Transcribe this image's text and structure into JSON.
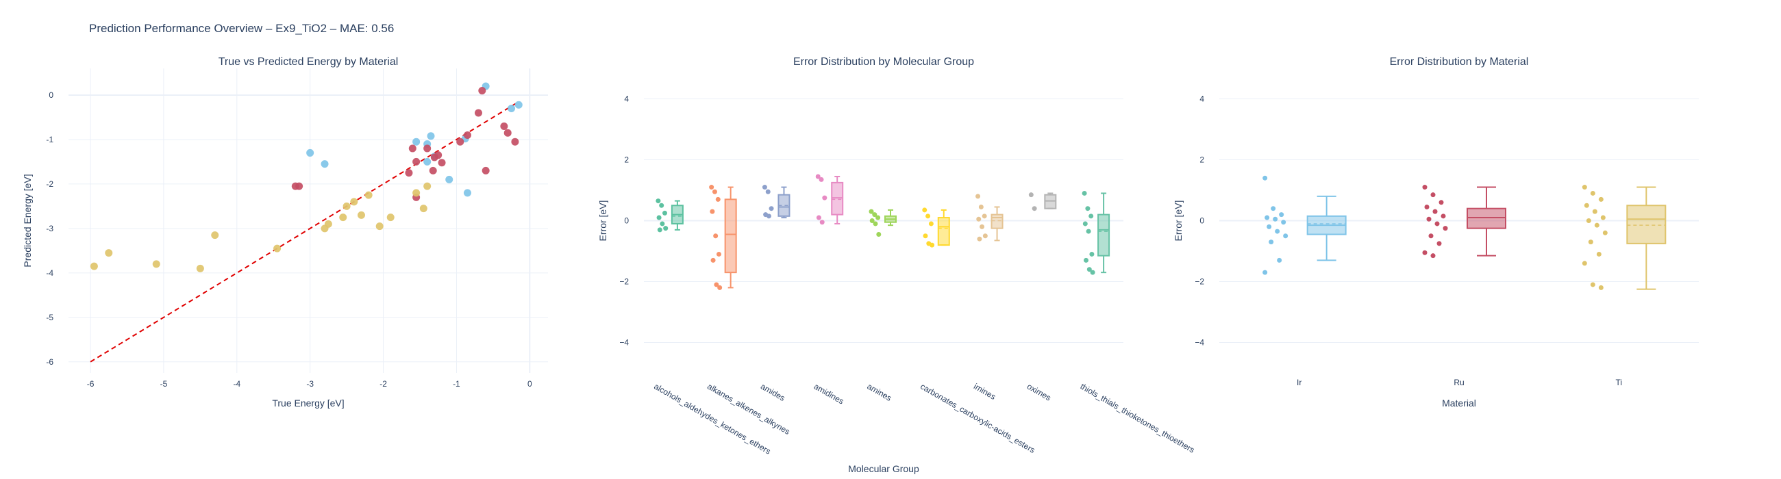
{
  "title": "Prediction Performance Overview – Ex9_TiO2 – MAE: 0.56",
  "colors": {
    "Ir": "#7fc4e8",
    "Ru": "#c44e64",
    "Ti": "#dfc46b",
    "diagonal": "#e00000"
  },
  "chart_data": [
    {
      "type": "scatter",
      "title": "True vs Predicted Energy by Material",
      "xlabel": "True Energy [eV]",
      "ylabel": "Predicted Energy [eV]",
      "xlim": [
        -6.3,
        0.25
      ],
      "ylim": [
        -6.25,
        0.6
      ],
      "xticks": [
        "-6",
        "-5",
        "-4",
        "-3",
        "-2",
        "-1",
        "0"
      ],
      "yticks": [
        "-6",
        "-5",
        "-4",
        "-3",
        "-2",
        "-1",
        "0"
      ],
      "grid": true,
      "diagonal": [
        [
          -6,
          -6
        ],
        [
          -0.15,
          -0.15
        ]
      ],
      "series": [
        {
          "key": "Ir",
          "points": [
            [
              -3.0,
              -1.3
            ],
            [
              -2.8,
              -1.55
            ],
            [
              -1.55,
              -1.05
            ],
            [
              -1.4,
              -1.1
            ],
            [
              -1.35,
              -0.92
            ],
            [
              -1.4,
              -1.5
            ],
            [
              -1.3,
              -1.38
            ],
            [
              -1.1,
              -1.9
            ],
            [
              -0.85,
              -2.2
            ],
            [
              -0.88,
              -0.98
            ],
            [
              -0.6,
              0.2
            ],
            [
              -0.15,
              -0.22
            ],
            [
              -0.25,
              -0.3
            ]
          ]
        },
        {
          "key": "Ru",
          "points": [
            [
              -3.2,
              -2.05
            ],
            [
              -3.15,
              -2.05
            ],
            [
              -1.6,
              -1.2
            ],
            [
              -1.55,
              -1.5
            ],
            [
              -1.65,
              -1.75
            ],
            [
              -1.55,
              -2.3
            ],
            [
              -1.4,
              -1.2
            ],
            [
              -1.32,
              -1.7
            ],
            [
              -1.3,
              -1.4
            ],
            [
              -1.25,
              -1.35
            ],
            [
              -1.2,
              -1.52
            ],
            [
              -0.95,
              -1.05
            ],
            [
              -0.85,
              -0.9
            ],
            [
              -0.7,
              -0.4
            ],
            [
              -0.65,
              0.1
            ],
            [
              -0.6,
              -1.7
            ],
            [
              -0.35,
              -0.7
            ],
            [
              -0.3,
              -0.85
            ],
            [
              -0.2,
              -1.05
            ]
          ]
        },
        {
          "key": "Ti",
          "points": [
            [
              -5.95,
              -3.85
            ],
            [
              -5.75,
              -3.55
            ],
            [
              -5.1,
              -3.8
            ],
            [
              -4.5,
              -3.9
            ],
            [
              -4.3,
              -3.15
            ],
            [
              -3.45,
              -3.45
            ],
            [
              -2.8,
              -3.0
            ],
            [
              -2.75,
              -2.9
            ],
            [
              -2.55,
              -2.75
            ],
            [
              -2.5,
              -2.5
            ],
            [
              -2.4,
              -2.4
            ],
            [
              -2.3,
              -2.7
            ],
            [
              -2.2,
              -2.25
            ],
            [
              -2.05,
              -2.95
            ],
            [
              -1.9,
              -2.75
            ],
            [
              -1.55,
              -2.2
            ],
            [
              -1.45,
              -2.55
            ],
            [
              -1.4,
              -2.05
            ]
          ]
        }
      ]
    },
    {
      "type": "box",
      "title": "Error Distribution by Molecular Group",
      "xlabel": "Molecular Group",
      "ylabel": "Error [eV]",
      "ylim": [
        -5,
        5
      ],
      "yticks": [
        "−4",
        "−2",
        "0",
        "2",
        "4"
      ],
      "groups": [
        {
          "label": "alcohols_aldehydes_ketones_ethers",
          "color": "#5cc1a0",
          "q1": -0.1,
          "median": 0.2,
          "q3": 0.5,
          "mean": 0.15,
          "low": -0.3,
          "high": 0.65,
          "points": [
            0.65,
            0.5,
            0.25,
            0.1,
            -0.1,
            -0.25,
            -0.3
          ]
        },
        {
          "label": "alkanes_alkenes_alkynes",
          "color": "#f7936b",
          "q1": -1.7,
          "median": -0.45,
          "q3": 0.7,
          "mean": -0.45,
          "low": -2.2,
          "high": 1.1,
          "points": [
            1.1,
            0.95,
            0.7,
            0.3,
            -0.5,
            -1.1,
            -1.3,
            -2.1,
            -2.2
          ]
        },
        {
          "label": "amides",
          "color": "#8da0cb",
          "q1": 0.15,
          "median": 0.45,
          "q3": 0.85,
          "mean": 0.5,
          "low": 0.1,
          "high": 1.1,
          "points": [
            1.1,
            0.95,
            0.4,
            0.2,
            0.15
          ]
        },
        {
          "label": "amidines",
          "color": "#e78ac3",
          "q1": 0.2,
          "median": 0.75,
          "q3": 1.25,
          "mean": 0.7,
          "low": -0.1,
          "high": 1.45,
          "points": [
            1.45,
            1.35,
            0.75,
            0.1,
            -0.05
          ]
        },
        {
          "label": "amines",
          "color": "#9ed55a",
          "q1": -0.05,
          "median": 0.05,
          "q3": 0.15,
          "mean": 0.05,
          "low": -0.15,
          "high": 0.35,
          "points": [
            0.3,
            0.2,
            0.1,
            0.0,
            -0.1,
            -0.45
          ]
        },
        {
          "label": "carbonates_carboxylic-acids_esters",
          "color": "#ffd92f",
          "q1": -0.8,
          "median": -0.2,
          "q3": 0.1,
          "mean": -0.25,
          "low": -0.8,
          "high": 0.35,
          "points": [
            0.35,
            0.15,
            -0.1,
            -0.5,
            -0.75,
            -0.8
          ]
        },
        {
          "label": "imines",
          "color": "#e5c494",
          "q1": -0.25,
          "median": 0.1,
          "q3": 0.2,
          "mean": 0.0,
          "low": -0.65,
          "high": 0.45,
          "points": [
            0.8,
            0.45,
            0.15,
            0.05,
            -0.2,
            -0.5,
            -0.6
          ]
        },
        {
          "label": "oximes",
          "color": "#b3b3b3",
          "q1": 0.4,
          "median": 0.65,
          "q3": 0.85,
          "mean": 0.65,
          "low": 0.4,
          "high": 0.9,
          "points": [
            0.85,
            0.4
          ]
        },
        {
          "label": "thiols_thials_thioketones_thioethers",
          "color": "#66c2a5",
          "q1": -1.15,
          "median": -0.3,
          "q3": 0.2,
          "mean": -0.35,
          "low": -1.7,
          "high": 0.9,
          "points": [
            0.9,
            0.4,
            0.15,
            -0.1,
            -0.35,
            -1.1,
            -1.3,
            -1.6,
            -1.7
          ]
        }
      ]
    },
    {
      "type": "box",
      "title": "Error Distribution by Material",
      "xlabel": "Material",
      "ylabel": "Error [eV]",
      "ylim": [
        -5,
        5
      ],
      "yticks": [
        "−4",
        "−2",
        "0",
        "2",
        "4"
      ],
      "groups": [
        {
          "label": "Ir",
          "key": "Ir",
          "q1": -0.45,
          "median": -0.15,
          "q3": 0.15,
          "mean": -0.1,
          "low": -1.3,
          "high": 0.8,
          "points": [
            1.4,
            0.4,
            0.2,
            0.1,
            0.05,
            -0.05,
            -0.2,
            -0.35,
            -0.5,
            -0.7,
            -1.3,
            -1.7
          ]
        },
        {
          "label": "Ru",
          "key": "Ru",
          "q1": -0.25,
          "median": 0.1,
          "q3": 0.4,
          "mean": 0.1,
          "low": -1.15,
          "high": 1.1,
          "points": [
            1.1,
            0.85,
            0.6,
            0.45,
            0.3,
            0.15,
            0.05,
            -0.1,
            -0.25,
            -0.5,
            -0.75,
            -1.05,
            -1.15
          ]
        },
        {
          "label": "Ti",
          "key": "Ti",
          "q1": -0.75,
          "median": 0.05,
          "q3": 0.5,
          "mean": -0.15,
          "low": -2.25,
          "high": 1.1,
          "points": [
            1.1,
            0.9,
            0.7,
            0.5,
            0.3,
            0.1,
            0.0,
            -0.15,
            -0.4,
            -0.7,
            -1.1,
            -1.4,
            -2.1,
            -2.2
          ]
        }
      ]
    }
  ]
}
